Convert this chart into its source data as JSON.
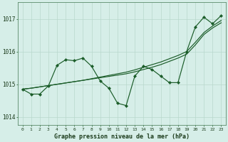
{
  "xlabel": "Graphe pression niveau de la mer (hPa)",
  "xlim": [
    -0.5,
    23.5
  ],
  "ylim": [
    1013.75,
    1017.5
  ],
  "yticks": [
    1014,
    1015,
    1016,
    1017
  ],
  "xticks": [
    0,
    1,
    2,
    3,
    4,
    5,
    6,
    7,
    8,
    9,
    10,
    11,
    12,
    13,
    14,
    15,
    16,
    17,
    18,
    19,
    20,
    21,
    22,
    23
  ],
  "background_color": "#d6eee8",
  "grid_color": "#b8d8cc",
  "line_color": "#1a5c28",
  "series_main": [
    1014.85,
    1014.7,
    1014.7,
    1014.95,
    1015.58,
    1015.75,
    1015.72,
    1015.8,
    1015.55,
    1015.1,
    1014.88,
    1014.42,
    1014.35,
    1015.25,
    1015.55,
    1015.45,
    1015.25,
    1015.05,
    1015.05,
    1016.0,
    1016.75,
    1017.05,
    1016.85,
    1017.1
  ],
  "series_trend1": [
    1014.85,
    1014.88,
    1014.92,
    1014.96,
    1015.0,
    1015.04,
    1015.08,
    1015.12,
    1015.16,
    1015.2,
    1015.24,
    1015.28,
    1015.32,
    1015.38,
    1015.45,
    1015.52,
    1015.6,
    1015.7,
    1015.8,
    1015.92,
    1016.2,
    1016.52,
    1016.72,
    1016.88
  ],
  "series_trend2": [
    1014.85,
    1014.88,
    1014.92,
    1014.96,
    1015.0,
    1015.04,
    1015.08,
    1015.12,
    1015.17,
    1015.22,
    1015.27,
    1015.32,
    1015.37,
    1015.44,
    1015.52,
    1015.6,
    1015.68,
    1015.78,
    1015.88,
    1016.0,
    1016.28,
    1016.58,
    1016.78,
    1016.95
  ]
}
